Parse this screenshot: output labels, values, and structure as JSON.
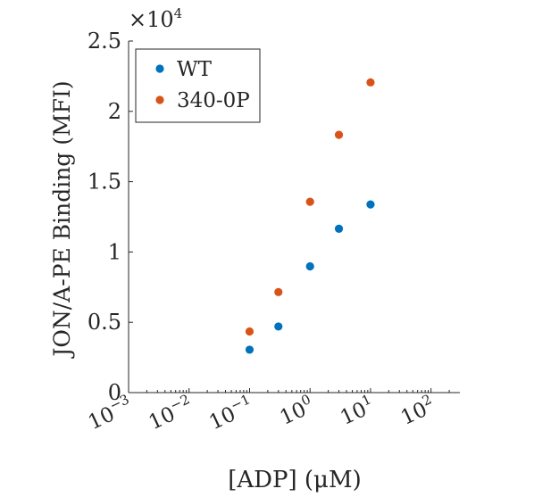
{
  "chart_data": {
    "type": "scatter",
    "xscale": "log",
    "xlim": [
      0.001,
      300
    ],
    "ylim": [
      0,
      25000
    ],
    "xlabel": "[ADP] (μM)",
    "ylabel": "JON/A-PE Binding (MFI)",
    "y_multiplier": "×10",
    "y_multiplier_exp": "4",
    "x_ticks": [
      {
        "value": 0.001,
        "base": "10",
        "exp": "−3"
      },
      {
        "value": 0.01,
        "base": "10",
        "exp": "−2"
      },
      {
        "value": 0.1,
        "base": "10",
        "exp": "−1"
      },
      {
        "value": 1,
        "base": "10",
        "exp": "0"
      },
      {
        "value": 10,
        "base": "10",
        "exp": "1"
      },
      {
        "value": 100,
        "base": "10",
        "exp": "2"
      }
    ],
    "y_ticks": [
      {
        "value": 0,
        "label": "0"
      },
      {
        "value": 5000,
        "label": "0.5"
      },
      {
        "value": 10000,
        "label": "1"
      },
      {
        "value": 15000,
        "label": "1.5"
      },
      {
        "value": 20000,
        "label": "2"
      },
      {
        "value": 25000,
        "label": "2.5"
      }
    ],
    "grid": false,
    "legend_position": "top-left",
    "series": [
      {
        "name": "WT",
        "color": "#0072BD",
        "points": [
          {
            "x": 0.1,
            "y": 3050
          },
          {
            "x": 0.3,
            "y": 4700
          },
          {
            "x": 1,
            "y": 8980
          },
          {
            "x": 3,
            "y": 11650
          },
          {
            "x": 10,
            "y": 13380
          }
        ]
      },
      {
        "name": "340-0P",
        "color": "#D95319",
        "points": [
          {
            "x": 0.1,
            "y": 4350
          },
          {
            "x": 0.3,
            "y": 7150
          },
          {
            "x": 1,
            "y": 13570
          },
          {
            "x": 3,
            "y": 18330
          },
          {
            "x": 10,
            "y": 22060
          }
        ]
      }
    ]
  }
}
